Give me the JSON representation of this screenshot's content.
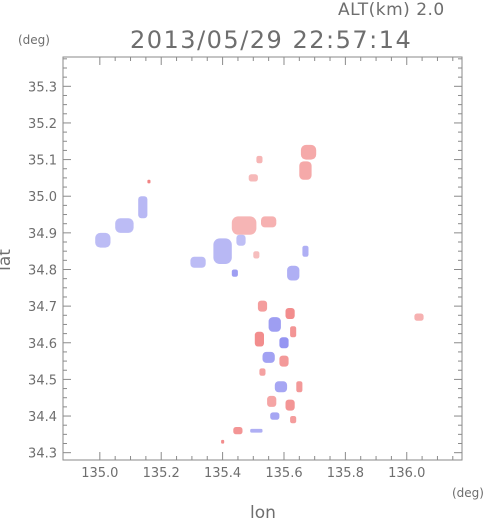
{
  "header": {
    "altitude_label": "ALT(km) 2.0",
    "datetime": "2013/05/29 22:57:14"
  },
  "colors": {
    "axis": "#8a8a8a",
    "text": "#6e6e6e",
    "positive": "#ee6666",
    "positive_light": "#f7c4c4",
    "negative": "#6666ee",
    "negative_light": "#c8c8f4"
  },
  "chart_data": {
    "type": "heatmap",
    "title": "",
    "xlabel": "lon",
    "ylabel": "lat",
    "x_unit": "(deg)",
    "y_unit": "(deg)",
    "xlim": [
      134.88,
      136.18
    ],
    "ylim": [
      34.28,
      35.38
    ],
    "x_ticks": [
      135.0,
      135.2,
      135.4,
      135.6,
      135.8,
      136.0
    ],
    "x_tick_labels": [
      "135.0",
      "135.2",
      "135.4",
      "135.6",
      "135.8",
      "136.0"
    ],
    "y_ticks": [
      34.3,
      34.4,
      34.5,
      34.6,
      34.7,
      34.8,
      34.9,
      35.0,
      35.1,
      35.2,
      35.3
    ],
    "y_tick_labels": [
      "34.3",
      "34.4",
      "34.5",
      "34.6",
      "34.7",
      "34.8",
      "34.9",
      "35.0",
      "35.1",
      "35.2",
      "35.3"
    ],
    "grid": false,
    "cells": [
      {
        "lon": 135.68,
        "lat": 35.12,
        "w": 0.05,
        "h": 0.04,
        "sign": "pos",
        "intensity": 0.45
      },
      {
        "lon": 135.67,
        "lat": 35.07,
        "w": 0.04,
        "h": 0.05,
        "sign": "pos",
        "intensity": 0.45
      },
      {
        "lon": 135.52,
        "lat": 35.1,
        "w": 0.02,
        "h": 0.02,
        "sign": "pos",
        "intensity": 0.3
      },
      {
        "lon": 135.5,
        "lat": 35.05,
        "w": 0.03,
        "h": 0.02,
        "sign": "pos",
        "intensity": 0.25
      },
      {
        "lon": 135.16,
        "lat": 35.04,
        "w": 0.01,
        "h": 0.01,
        "sign": "pos",
        "intensity": 0.9
      },
      {
        "lon": 135.14,
        "lat": 34.97,
        "w": 0.03,
        "h": 0.06,
        "sign": "neg",
        "intensity": 0.3
      },
      {
        "lon": 135.08,
        "lat": 34.92,
        "w": 0.06,
        "h": 0.04,
        "sign": "neg",
        "intensity": 0.25
      },
      {
        "lon": 135.01,
        "lat": 34.88,
        "w": 0.05,
        "h": 0.04,
        "sign": "neg",
        "intensity": 0.25
      },
      {
        "lon": 135.47,
        "lat": 34.92,
        "w": 0.08,
        "h": 0.05,
        "sign": "pos",
        "intensity": 0.3
      },
      {
        "lon": 135.55,
        "lat": 34.93,
        "w": 0.05,
        "h": 0.03,
        "sign": "pos",
        "intensity": 0.35
      },
      {
        "lon": 135.4,
        "lat": 34.85,
        "w": 0.06,
        "h": 0.07,
        "sign": "neg",
        "intensity": 0.3
      },
      {
        "lon": 135.32,
        "lat": 34.82,
        "w": 0.05,
        "h": 0.03,
        "sign": "neg",
        "intensity": 0.25
      },
      {
        "lon": 135.46,
        "lat": 34.88,
        "w": 0.03,
        "h": 0.03,
        "sign": "neg",
        "intensity": 0.2
      },
      {
        "lon": 135.44,
        "lat": 34.79,
        "w": 0.02,
        "h": 0.02,
        "sign": "neg",
        "intensity": 0.6
      },
      {
        "lon": 135.63,
        "lat": 34.79,
        "w": 0.04,
        "h": 0.04,
        "sign": "neg",
        "intensity": 0.4
      },
      {
        "lon": 135.67,
        "lat": 34.85,
        "w": 0.02,
        "h": 0.03,
        "sign": "neg",
        "intensity": 0.4
      },
      {
        "lon": 135.51,
        "lat": 34.84,
        "w": 0.02,
        "h": 0.02,
        "sign": "pos",
        "intensity": 0.2
      },
      {
        "lon": 136.04,
        "lat": 34.67,
        "w": 0.03,
        "h": 0.02,
        "sign": "pos",
        "intensity": 0.35
      },
      {
        "lon": 135.53,
        "lat": 34.7,
        "w": 0.03,
        "h": 0.03,
        "sign": "pos",
        "intensity": 0.6
      },
      {
        "lon": 135.57,
        "lat": 34.65,
        "w": 0.04,
        "h": 0.04,
        "sign": "neg",
        "intensity": 0.6
      },
      {
        "lon": 135.62,
        "lat": 34.68,
        "w": 0.03,
        "h": 0.03,
        "sign": "pos",
        "intensity": 0.8
      },
      {
        "lon": 135.52,
        "lat": 34.61,
        "w": 0.03,
        "h": 0.04,
        "sign": "pos",
        "intensity": 0.8
      },
      {
        "lon": 135.6,
        "lat": 34.6,
        "w": 0.03,
        "h": 0.03,
        "sign": "neg",
        "intensity": 0.7
      },
      {
        "lon": 135.63,
        "lat": 34.63,
        "w": 0.02,
        "h": 0.03,
        "sign": "pos",
        "intensity": 0.7
      },
      {
        "lon": 135.55,
        "lat": 34.56,
        "w": 0.04,
        "h": 0.03,
        "sign": "neg",
        "intensity": 0.55
      },
      {
        "lon": 135.6,
        "lat": 34.55,
        "w": 0.03,
        "h": 0.03,
        "sign": "pos",
        "intensity": 0.65
      },
      {
        "lon": 135.53,
        "lat": 34.52,
        "w": 0.02,
        "h": 0.02,
        "sign": "pos",
        "intensity": 0.55
      },
      {
        "lon": 135.59,
        "lat": 34.48,
        "w": 0.04,
        "h": 0.03,
        "sign": "neg",
        "intensity": 0.5
      },
      {
        "lon": 135.65,
        "lat": 34.48,
        "w": 0.02,
        "h": 0.03,
        "sign": "pos",
        "intensity": 0.65
      },
      {
        "lon": 135.56,
        "lat": 34.44,
        "w": 0.03,
        "h": 0.03,
        "sign": "pos",
        "intensity": 0.5
      },
      {
        "lon": 135.62,
        "lat": 34.43,
        "w": 0.03,
        "h": 0.03,
        "sign": "pos",
        "intensity": 0.7
      },
      {
        "lon": 135.57,
        "lat": 34.4,
        "w": 0.03,
        "h": 0.02,
        "sign": "neg",
        "intensity": 0.5
      },
      {
        "lon": 135.63,
        "lat": 34.39,
        "w": 0.02,
        "h": 0.02,
        "sign": "pos",
        "intensity": 0.6
      },
      {
        "lon": 135.45,
        "lat": 34.36,
        "w": 0.03,
        "h": 0.02,
        "sign": "pos",
        "intensity": 0.7
      },
      {
        "lon": 135.51,
        "lat": 34.36,
        "w": 0.04,
        "h": 0.01,
        "sign": "neg",
        "intensity": 0.4
      },
      {
        "lon": 135.4,
        "lat": 34.33,
        "w": 0.01,
        "h": 0.01,
        "sign": "pos",
        "intensity": 0.8
      }
    ]
  }
}
